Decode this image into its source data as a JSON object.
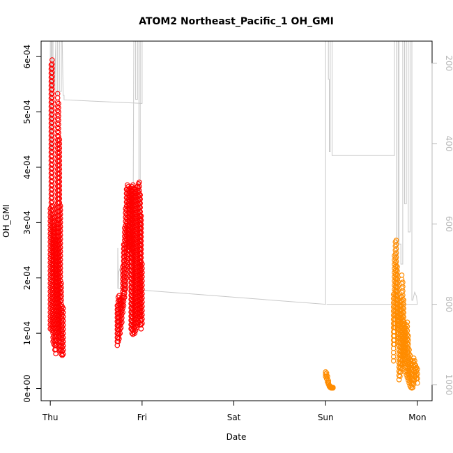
{
  "chart_data": {
    "type": "scatter",
    "title": "ATOM2 Northeast_Pacific_1 OH_GMI",
    "xlabel": "Date",
    "ylabel": "OH_GMI",
    "x_ticks": [
      "Thu",
      "Fri",
      "Sat",
      "Sun",
      "Mon"
    ],
    "x_range_days": [
      -0.1,
      4.16
    ],
    "y_ticks": [
      "0e+00",
      "1e-04",
      "2e-04",
      "3e-04",
      "4e-04",
      "5e-04",
      "6e-04"
    ],
    "y_range": [
      -2.2e-05,
      0.000628
    ],
    "y2_ticks": [
      "200",
      "400",
      "600",
      "800",
      "1000"
    ],
    "y2_range_reversed": [
      1040,
      145
    ],
    "grid": false,
    "colors": {
      "series_red": "#ff0000",
      "series_orange": "#ff8c00",
      "pressure_line": "#c8c8c8"
    },
    "series": [
      {
        "color": "red",
        "segments": [
          {
            "x": [
              0.0,
              0.01,
              0.02,
              0.03,
              0.04,
              0.05,
              0.06,
              0.07,
              0.08,
              0.09,
              0.1,
              0.11,
              0.12,
              0.13,
              0.14
            ],
            "ymin": [
              0.000108,
              0.00011,
              0.000105,
              8.5e-05,
              8e-05,
              7e-05,
              6.3e-05,
              8e-05,
              0.0001,
              9.5e-05,
              7e-05,
              6.8e-05,
              6.2e-05,
              6e-05,
              6.2e-05
            ],
            "ymax": [
              0.000325,
              0.000585,
              0.000594,
              0.00033,
              0.00031,
              0.00029,
              0.00027,
              0.0003,
              0.000533,
              0.000515,
              0.00045,
              0.00033,
              0.00019,
              0.000148,
              0.000145
            ]
          },
          {
            "x": [
              0.73,
              0.74,
              0.75,
              0.76,
              0.77,
              0.78,
              0.79,
              0.8,
              0.81,
              0.82,
              0.83,
              0.84,
              0.85,
              0.86,
              0.87,
              0.88,
              0.89,
              0.9,
              0.91,
              0.92,
              0.93,
              0.94,
              0.95,
              0.96,
              0.97,
              0.98,
              0.99,
              1.0
            ],
            "ymin": [
              7.8e-05,
              8.5e-05,
              9e-05,
              0.0001,
              0.00011,
              0.00012,
              0.000138,
              0.00015,
              0.000165,
              0.00018,
              0.0002,
              0.00022,
              0.000235,
              0.00025,
              0.00026,
              0.000108,
              0.0001,
              9.8e-05,
              0.000102,
              0.0001,
              0.000105,
              0.00011,
              0.000115,
              0.00012,
              0.00013,
              0.000115,
              0.000108,
              0.000118
            ],
            "ymax": [
              0.00015,
              0.000165,
              0.000168,
              0.00016,
              0.00016,
              0.000165,
              0.00022,
              0.00026,
              0.00029,
              0.000325,
              0.00036,
              0.000368,
              0.000365,
              0.00036,
              0.000362,
              0.000358,
              0.000365,
              0.000368,
              0.000362,
              0.00036,
              0.000355,
              0.00036,
              0.000365,
              0.00037,
              0.000373,
              0.00035,
              0.000312,
              0.000225
            ]
          }
        ]
      },
      {
        "color": "orange",
        "segments": [
          {
            "x": [
              3.0,
              3.01,
              3.02,
              3.03,
              3.04,
              3.05,
              3.06,
              3.07,
              3.08
            ],
            "ymin": [
              2.2e-05,
              1.8e-05,
              1.2e-05,
              8e-06,
              4e-06,
              2e-06,
              1e-06,
              1e-06,
              1e-06
            ],
            "ymax": [
              3e-05,
              2.8e-05,
              2.2e-05,
              1.4e-05,
              6e-06,
              4e-06,
              3e-06,
              2e-06,
              2e-06
            ]
          },
          {
            "x": [
              3.74,
              3.75,
              3.76,
              3.77,
              3.78,
              3.79,
              3.8,
              3.81,
              3.82,
              3.83,
              3.84,
              3.85,
              3.86,
              3.87,
              3.88,
              3.89,
              3.9,
              3.91,
              3.92,
              3.93,
              3.94,
              3.95,
              3.96,
              3.97,
              3.98,
              3.99,
              4.0
            ],
            "ymin": [
              5e-05,
              8e-05,
              0.00011,
              0.00013,
              0.00011,
              9e-05,
              1.6e-05,
              2.2e-05,
              3e-05,
              3.5e-05,
              4.5e-05,
              6e-05,
              4.5e-05,
              3e-05,
              2.5e-05,
              2e-05,
              1.5e-05,
              1e-05,
              5e-06,
              2e-06,
              1e-06,
              2e-06,
              8e-06,
              1.5e-05,
              2.2e-05,
              1.8e-05,
              1e-05
            ],
            "ymax": [
              0.00017,
              0.00024,
              0.000265,
              0.000268,
              0.00022,
              0.00016,
              0.00013,
              0.00015,
              0.000165,
              0.000205,
              0.000192,
              0.00016,
              0.000118,
              0.00011,
              0.000115,
              0.00012,
              9.5e-05,
              7e-05,
              6e-05,
              5e-05,
              4.5e-05,
              5e-05,
              5.5e-05,
              5e-05,
              4.2e-05,
              3.8e-05,
              3.5e-05
            ]
          }
        ]
      }
    ],
    "pressure_line": {
      "axis": "right",
      "x": [
        0.0,
        0.0,
        0.01,
        0.01,
        0.02,
        0.02,
        0.03,
        0.03,
        0.045,
        0.06,
        0.06,
        0.08,
        0.08,
        0.1,
        0.1,
        0.12,
        0.12,
        0.13,
        0.14,
        0.15,
        0.15,
        1.0,
        1.0,
        0.98,
        0.98,
        0.965,
        0.965,
        0.95,
        0.95,
        0.93,
        0.93,
        0.91,
        0.9,
        0.9,
        0.88,
        0.86,
        0.84,
        0.8,
        0.78,
        0.76,
        0.745,
        0.74,
        0.735,
        0.735,
        3.0,
        3.0,
        3.03,
        3.03,
        3.04,
        3.04,
        3.05,
        3.05,
        3.07,
        3.07,
        3.75,
        3.75,
        3.77,
        3.77,
        3.79,
        3.79,
        3.8,
        3.8,
        3.82,
        3.82,
        3.84,
        3.84,
        3.86,
        3.86,
        3.88,
        3.88,
        3.9,
        3.9,
        3.92,
        3.92,
        3.94,
        3.94,
        3.95,
        3.97,
        3.99,
        4.0,
        4.0,
        3.01
      ],
      "y": [
        800,
        145,
        145,
        420,
        420,
        145,
        145,
        260,
        260,
        145,
        280,
        280,
        145,
        145,
        270,
        270,
        145,
        145,
        280,
        280,
        291,
        300,
        145,
        145,
        640,
        640,
        145,
        145,
        290,
        290,
        145,
        145,
        720,
        840,
        860,
        700,
        760,
        720,
        760,
        710,
        720,
        760,
        660,
        760,
        800,
        145,
        145,
        240,
        240,
        420,
        420,
        145,
        145,
        430,
        430,
        145,
        145,
        820,
        820,
        145,
        145,
        650,
        650,
        700,
        700,
        145,
        145,
        550,
        550,
        145,
        145,
        620,
        620,
        145,
        145,
        790,
        790,
        770,
        780,
        800,
        800,
        800
      ]
    }
  }
}
